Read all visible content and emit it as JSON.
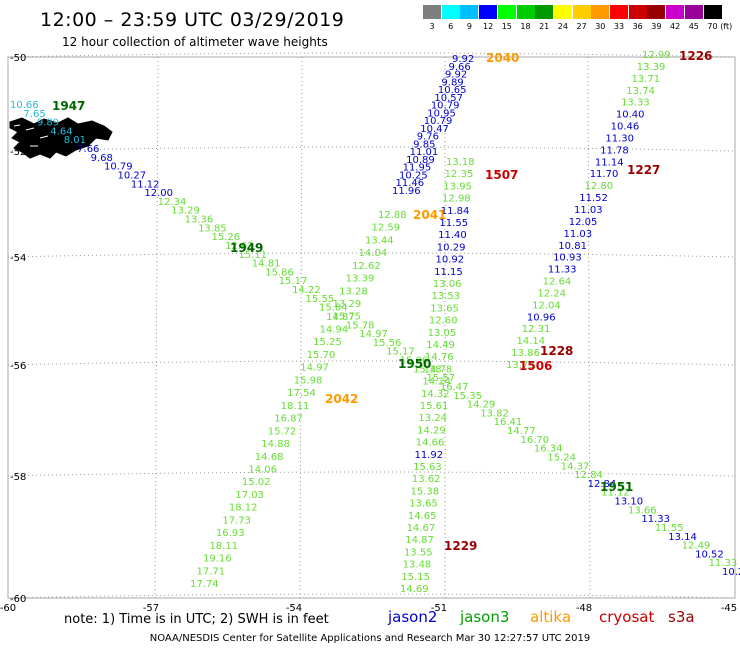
{
  "header": {
    "title": "12:00 – 23:59 UTC 03/29/2019",
    "subtitle": "12 hour collection of altimeter wave heights"
  },
  "legend": {
    "unit": "(ft)",
    "bins": [
      {
        "label": "3",
        "color": "#7f7f7f"
      },
      {
        "label": "6",
        "color": "#00ffff"
      },
      {
        "label": "9",
        "color": "#00bfff"
      },
      {
        "label": "12",
        "color": "#0000ff"
      },
      {
        "label": "15",
        "color": "#00ff00"
      },
      {
        "label": "18",
        "color": "#00cc00"
      },
      {
        "label": "21",
        "color": "#009900"
      },
      {
        "label": "24",
        "color": "#ffff00"
      },
      {
        "label": "27",
        "color": "#ffcc00"
      },
      {
        "label": "30",
        "color": "#ff9900"
      },
      {
        "label": "33",
        "color": "#ff0000"
      },
      {
        "label": "36",
        "color": "#cc0000"
      },
      {
        "label": "39",
        "color": "#990000"
      },
      {
        "label": "42",
        "color": "#cc00cc"
      },
      {
        "label": "45",
        "color": "#990099"
      },
      {
        "label": "70",
        "color": "#000000"
      }
    ]
  },
  "map": {
    "lon_ticks": [
      "-60",
      "-57",
      "-54",
      "-51",
      "-48",
      "-45"
    ],
    "lat_ticks": [
      "-50",
      "-52",
      "-54",
      "-56",
      "-58",
      "-60"
    ],
    "land_color": "#000000"
  },
  "colors": {
    "jason2": "#0000cc",
    "jason3": "#00a000",
    "altika": "#ff9900",
    "cryosat": "#cc0000",
    "s3a": "#990000",
    "light_green": "#66dd33",
    "cyan": "#22bbdd"
  },
  "tracks": [
    {
      "id": "t1947",
      "label": "1947",
      "label_color": "#006600",
      "color_mix": true,
      "values": [
        "10.66",
        "7.65",
        "9.89",
        "4.64",
        "8.01",
        "7.66",
        "9.68",
        "10.79",
        "10.27",
        "11.12",
        "12.00",
        "12.34",
        "13.29",
        "13.36",
        "13.85",
        "15.26",
        "12.62",
        "15.11",
        "14.81",
        "15.86",
        "15.17",
        "14.22",
        "15.55",
        "15.84",
        "15.75",
        "15.78",
        "14.97",
        "15.56",
        "15.17",
        "15.06",
        "15.38",
        "15.57",
        "16.47",
        "15.35",
        "14.29",
        "13.82",
        "16.41",
        "14.77",
        "16.70",
        "16.34",
        "15.24",
        "14.37",
        "12.84",
        "12.84",
        "11.12",
        "13.10",
        "13.66",
        "11.33",
        "11.55",
        "13.14",
        "12.49",
        "10.52",
        "11.33",
        "10.2"
      ]
    },
    {
      "id": "t1949",
      "label": "1949",
      "label_color": "#006600",
      "values": []
    },
    {
      "id": "t1950",
      "label": "1950",
      "label_color": "#006600",
      "values": []
    },
    {
      "id": "t1951",
      "label": "1951",
      "label_color": "#006600",
      "values": []
    },
    {
      "id": "t2040",
      "label": "2040",
      "label_color": "#ff9900",
      "values": [
        "9.92",
        "9.66",
        "9.92",
        "9.89",
        "10.65",
        "10.57",
        "10.79",
        "10.95",
        "10.79",
        "10.47",
        "9.76",
        "9.85",
        "11.01",
        "10.89",
        "11.95",
        "10.25",
        "11.46",
        "11.96"
      ]
    },
    {
      "id": "t2041",
      "label": "2041",
      "label_color": "#ff9900",
      "values": [
        "12.88",
        "12.59",
        "13.44",
        "14.04",
        "12.62",
        "13.39",
        "13.28",
        "13.29",
        "14.87",
        "14.94",
        "15.25",
        "15.70",
        "14.97",
        "15.98",
        "17.54",
        "18.11",
        "16.87",
        "15.72",
        "14.88",
        "14.68",
        "14.06",
        "15.02",
        "17.03",
        "18.12",
        "17.73",
        "16.93",
        "18.11",
        "19.16",
        "17.71",
        "17.74"
      ]
    },
    {
      "id": "t2042",
      "label": "2042",
      "label_color": "#ff9900",
      "values": []
    },
    {
      "id": "t1507",
      "label": "1507",
      "label_color": "#cc0000",
      "values": [
        "13.18",
        "12.35",
        "13.95",
        "12.98",
        "11.84",
        "11.55",
        "11.40",
        "10.29",
        "10.92",
        "11.15",
        "13.06",
        "13.53",
        "13.65",
        "12.60",
        "13.05",
        "14.49",
        "14.76",
        "14.78",
        "14.24",
        "14.32",
        "15.61",
        "13.24",
        "14.29",
        "14.66",
        "11.92",
        "15.63",
        "13.62",
        "15.38",
        "13.65",
        "14.65",
        "14.67",
        "14.87",
        "13.55",
        "13.48",
        "15.15",
        "14.69"
      ]
    },
    {
      "id": "t1506",
      "label": "1506",
      "label_color": "#cc0000",
      "values": []
    },
    {
      "id": "t1229",
      "label": "1229",
      "label_color": "#990000",
      "values": []
    },
    {
      "id": "t1226",
      "label": "1226",
      "label_color": "#990000",
      "values": [
        "12.99",
        "13.39",
        "13.71",
        "13.74",
        "13.33",
        "10.40",
        "10.46",
        "11.30",
        "11.78",
        "11.14",
        "11.70",
        "12.80",
        "11.52",
        "11.03",
        "12.05",
        "11.03",
        "10.81",
        "10.93",
        "11.33",
        "12.64",
        "12.24",
        "12.04",
        "10.96",
        "12.31",
        "14.14",
        "13.86",
        "13.73"
      ]
    },
    {
      "id": "t1227",
      "label": "1227",
      "label_color": "#990000",
      "values": []
    },
    {
      "id": "t1228",
      "label": "1228",
      "label_color": "#990000",
      "values": []
    }
  ],
  "footer": {
    "note": "note: 1) Time is in UTC; 2) SWH is in feet",
    "missions": [
      {
        "name": "jason2",
        "color": "#0000cc"
      },
      {
        "name": "jason3",
        "color": "#00a000"
      },
      {
        "name": "altika",
        "color": "#ff9900"
      },
      {
        "name": "cryosat",
        "color": "#cc0000"
      },
      {
        "name": "s3a",
        "color": "#990000"
      }
    ],
    "credit": "NOAA/NESDIS Center for Satellite Applications and Research     Mar 30 12:27:57 UTC 2019"
  }
}
